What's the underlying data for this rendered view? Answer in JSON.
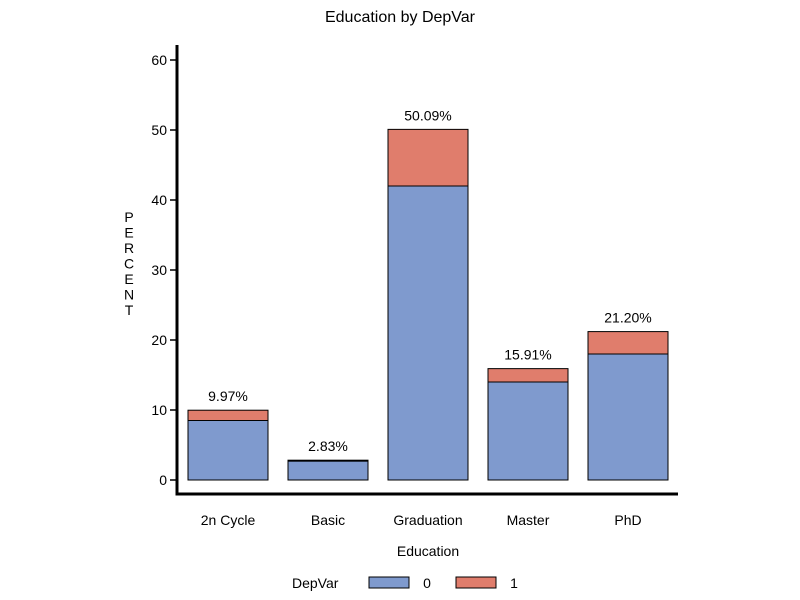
{
  "chart_data": {
    "type": "bar",
    "stacked": true,
    "title": "Education by DepVar",
    "xlabel": "Education",
    "ylabel": "PERCENT",
    "ylim": [
      0,
      60
    ],
    "yticks": [
      0,
      10,
      20,
      30,
      40,
      50,
      60
    ],
    "categories": [
      "2n Cycle",
      "Basic",
      "Graduation",
      "Master",
      "PhD"
    ],
    "series": [
      {
        "name": "0",
        "color": "#7f9ace",
        "values": [
          8.5,
          2.7,
          42.0,
          14.0,
          18.0
        ]
      },
      {
        "name": "1",
        "color": "#e07d6c",
        "values": [
          1.47,
          0.13,
          8.09,
          1.91,
          3.2
        ]
      }
    ],
    "totals": [
      "9.97%",
      "2.83%",
      "50.09%",
      "15.91%",
      "21.20%"
    ],
    "legend": {
      "title": "DepVar",
      "position": "bottom"
    }
  }
}
